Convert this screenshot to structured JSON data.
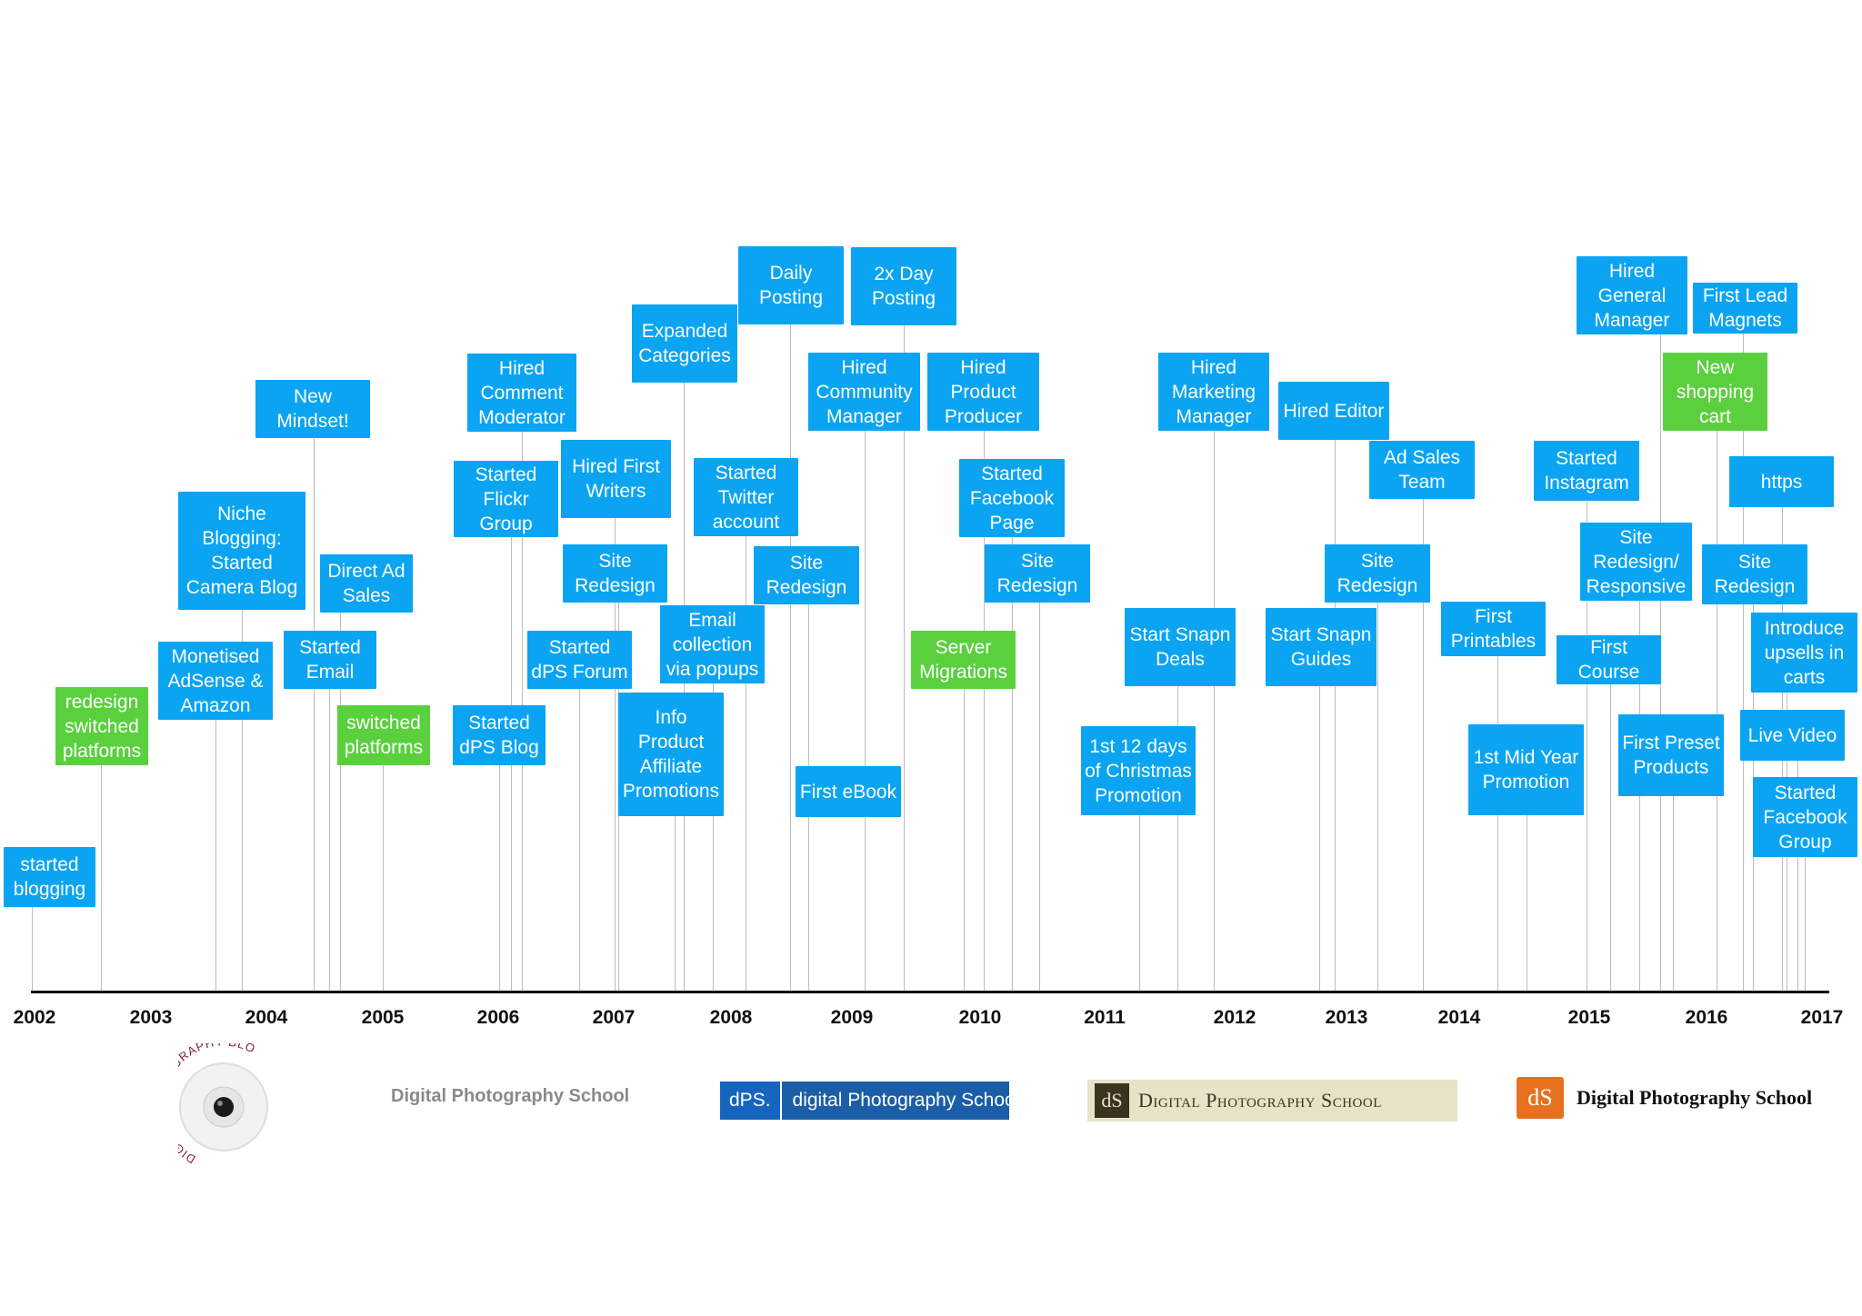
{
  "axis": {
    "years": [
      "2002",
      "2003",
      "2004",
      "2005",
      "2006",
      "2007",
      "2008",
      "2009",
      "2010",
      "2011",
      "2012",
      "2013",
      "2014",
      "2015",
      "2016",
      "2017"
    ]
  },
  "events": [
    {
      "label": "started\nblogging",
      "color": "blue",
      "date": 2002.1
    },
    {
      "label": "redesign\nswitched\nplatforms",
      "color": "green",
      "date": 2002.65
    },
    {
      "label": "Monetised\nAdSense &\nAmazon",
      "color": "blue",
      "date": 2003.55
    },
    {
      "label": "Niche\nBlogging:\nStarted\nCamera Blog",
      "color": "blue",
      "date": 2003.8
    },
    {
      "label": "New\nMindset!",
      "color": "blue",
      "date": 2004.4
    },
    {
      "label": "Started\nEmail",
      "color": "blue",
      "date": 2004.55
    },
    {
      "label": "Direct Ad\nSales",
      "color": "blue",
      "date": 2004.65
    },
    {
      "label": "switched\nplatforms",
      "color": "green",
      "date": 2005.0
    },
    {
      "label": "Started\ndPS Blog",
      "color": "blue",
      "date": 2006.0
    },
    {
      "label": "Started\nFlickr\nGroup",
      "color": "blue",
      "date": 2006.1
    },
    {
      "label": "Hired\nComment\nModerator",
      "color": "blue",
      "date": 2006.2
    },
    {
      "label": "Started\ndPS Forum",
      "color": "blue",
      "date": 2006.7
    },
    {
      "label": "Hired First\nWriters",
      "color": "blue",
      "date": 2007.0
    },
    {
      "label": "Site\nRedesign",
      "color": "blue",
      "date": 2007.05
    },
    {
      "label": "Info\nProduct\nAffiliate\nPromotions",
      "color": "blue",
      "date": 2007.5
    },
    {
      "label": "Expanded\nCategories",
      "color": "blue",
      "date": 2007.6
    },
    {
      "label": "Email\ncollection\nvia popups",
      "color": "blue",
      "date": 2007.85
    },
    {
      "label": "Started\nTwitter\naccount",
      "color": "blue",
      "date": 2008.15
    },
    {
      "label": "Daily\nPosting",
      "color": "blue",
      "date": 2008.5
    },
    {
      "label": "Site\nRedesign",
      "color": "blue",
      "date": 2008.65
    },
    {
      "label": "First eBook",
      "color": "blue",
      "date": 2008.95
    },
    {
      "label": "Hired\nCommunity\nManager",
      "color": "blue",
      "date": 2009.1
    },
    {
      "label": "2x Day\nPosting",
      "color": "blue",
      "date": 2009.4
    },
    {
      "label": "Server\nMigrations",
      "color": "green",
      "date": 2009.85
    },
    {
      "label": "Hired\nProduct\nProducer",
      "color": "blue",
      "date": 2010.05
    },
    {
      "label": "Started\nFacebook\nPage",
      "color": "blue",
      "date": 2010.25
    },
    {
      "label": "Site\nRedesign",
      "color": "blue",
      "date": 2010.5
    },
    {
      "label": "1st 12 days\nof Christmas\nPromotion",
      "color": "blue",
      "date": 2011.3
    },
    {
      "label": "Start Snapn\nDeals",
      "color": "blue",
      "date": 2011.55
    },
    {
      "label": "Hired\nMarketing\nManager",
      "color": "blue",
      "date": 2011.85
    },
    {
      "label": "Start Snapn\nGuides",
      "color": "blue",
      "date": 2012.75
    },
    {
      "label": "Hired Editor",
      "color": "blue",
      "date": 2012.9
    },
    {
      "label": "Site\nRedesign",
      "color": "blue",
      "date": 2013.25
    },
    {
      "label": "Ad Sales\nTeam",
      "color": "blue",
      "date": 2013.7
    },
    {
      "label": "First\nPrintables",
      "color": "blue",
      "date": 2014.3
    },
    {
      "label": "1st Mid Year\nPromotion",
      "color": "blue",
      "date": 2014.55
    },
    {
      "label": "Started\nInstagram",
      "color": "blue",
      "date": 2014.95
    },
    {
      "label": "First\nCourse",
      "color": "blue",
      "date": 2015.15
    },
    {
      "label": "Site\nRedesign/\nResponsive",
      "color": "blue",
      "date": 2015.45
    },
    {
      "label": "Hired\nGeneral\nManager",
      "color": "blue",
      "date": 2015.6
    },
    {
      "label": "First Preset\nProducts",
      "color": "blue",
      "date": 2015.7
    },
    {
      "label": "New\nshopping\ncart",
      "color": "green",
      "date": 2016.05
    },
    {
      "label": "First Lead\nMagnets",
      "color": "blue",
      "date": 2016.3
    },
    {
      "label": "Site\nRedesign",
      "color": "blue",
      "date": 2016.4
    },
    {
      "label": "https",
      "color": "blue",
      "date": 2016.7
    },
    {
      "label": "Introduce\nupsells in\ncarts",
      "color": "blue",
      "date": 2016.8
    },
    {
      "label": "Live Video",
      "color": "blue",
      "date": 2016.9
    },
    {
      "label": "Started\nFacebook\nGroup",
      "color": "blue",
      "date": 2016.95
    }
  ],
  "logos": {
    "logo1_text": "DIGITAL PHOTOGRAPHY BLOG",
    "logo2_text": "Digital Photography School",
    "logo3_mark": "dPS.",
    "logo3_text": "digital Photography School",
    "logo4_mark": "dS",
    "logo4_text": "Digital Photography School",
    "logo5_mark": "dS",
    "logo5_text": "Digital Photography School"
  },
  "colors": {
    "blue": "#0aa4f2",
    "green": "#5ad03e"
  }
}
